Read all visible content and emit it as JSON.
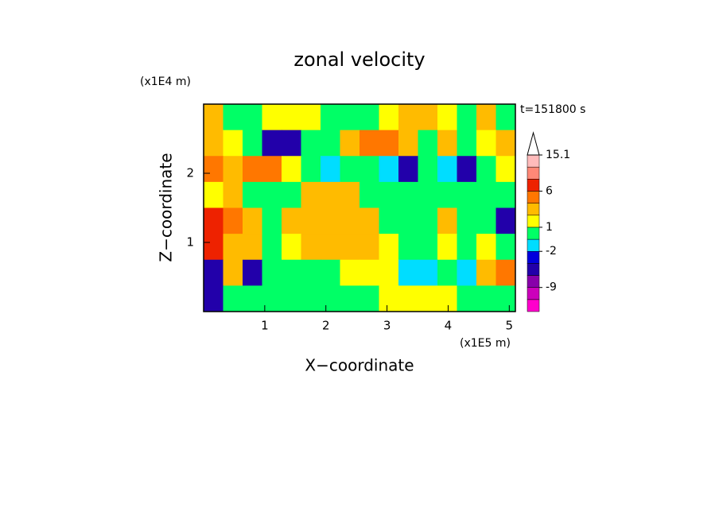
{
  "chart_data": {
    "type": "contour",
    "title": "zonal velocity",
    "x_label": "X−coordinate",
    "y_label": "Z−coordinate",
    "x_unit": "(x1E5 m)",
    "y_unit": "(x1E4 m)",
    "time_label": "t=151800 s",
    "xlim": [
      0,
      5.1
    ],
    "ylim": [
      0,
      3
    ],
    "xticks": [
      1,
      2,
      3,
      4,
      5
    ],
    "yticks": [
      1,
      2
    ],
    "levels": [
      -12,
      -9,
      -6,
      -4,
      -2,
      -1,
      1,
      2,
      4,
      6,
      9,
      12,
      15.1
    ],
    "colors": [
      "#ff00cc",
      "#cc00bb",
      "#8800aa",
      "#2200aa",
      "#0000dd",
      "#00ddff",
      "#00ff66",
      "#ffff00",
      "#ffbb00",
      "#ff7700",
      "#ee2200",
      "#ff8877",
      "#ffbbbb",
      "#ffffff"
    ],
    "colorbar_ticks": [
      15.1,
      6,
      1,
      -2,
      -9
    ],
    "z_grid": [
      [
        3,
        0,
        0,
        1.5,
        1.5,
        1.5,
        0,
        0,
        0,
        1.5,
        3,
        3,
        1.5,
        0,
        3,
        0
      ],
      [
        3,
        1.5,
        0,
        -5,
        -5,
        0,
        0,
        3,
        5,
        5,
        3,
        0,
        3,
        0,
        1.5,
        3
      ],
      [
        5,
        3,
        5,
        5,
        1.5,
        0,
        -1.5,
        0,
        0,
        -1.5,
        -5,
        0,
        -1.5,
        -5,
        0,
        1.5
      ],
      [
        1.5,
        3,
        0,
        0,
        0,
        3,
        3,
        3,
        0,
        0,
        0,
        0,
        0,
        0,
        0,
        0
      ],
      [
        7,
        5,
        3,
        0,
        3,
        3,
        3,
        3,
        3,
        0,
        0,
        0,
        3,
        0,
        0,
        -5
      ],
      [
        7,
        3,
        3,
        0,
        1.5,
        3,
        3,
        3,
        3,
        1.5,
        0,
        0,
        1.5,
        0,
        1.5,
        0
      ],
      [
        -5,
        3,
        -5,
        0,
        0,
        0,
        0,
        1.5,
        1.5,
        1.5,
        -1.5,
        -1.5,
        0,
        -1.5,
        3,
        5
      ],
      [
        -5,
        0,
        0,
        0,
        0,
        0,
        0,
        0,
        0,
        1.5,
        1.5,
        1.5,
        1.5,
        0,
        0,
        0
      ]
    ]
  }
}
